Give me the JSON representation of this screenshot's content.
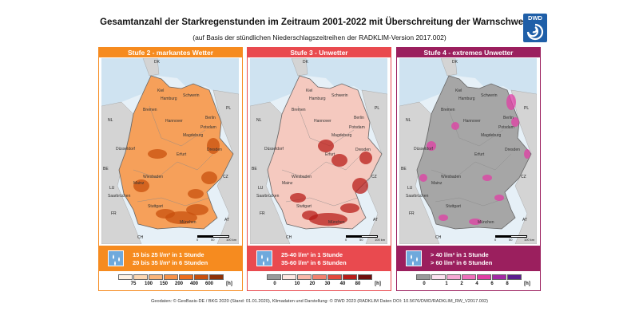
{
  "title": "Gesamtanzahl der Starkregenstunden im Zeitraum 2001-2022 mit Überschreitung der Warnschwellen",
  "subtitle": "(auf Basis der stündlichen Niederschlagszeitreihen der RADKLIM-Version 2017.002)",
  "logo_text": "DWD",
  "footer": "Geodaten: © GeoBasis-DE / BKG 2020 (Stand: 01.01.2020), Klimadaten und Darstellung: © DWD 2023 (RADKLIM Daten DOI: 10.5676/DWD/RADKLIM_RW_V2017.002)",
  "countries": {
    "dk": "DK",
    "nl": "NL",
    "be": "BE",
    "lu": "LU",
    "fr": "FR",
    "ch": "CH",
    "at": "AT",
    "cz": "CZ",
    "pl": "PL"
  },
  "cities": {
    "kiel": "Kiel",
    "hamburg": "Hamburg",
    "schwerin": "Schwerin",
    "bremen": "Bremen",
    "berlin": "Berlin",
    "hannover": "Hannover",
    "potsdam": "Potsdam",
    "magdeburg": "Magdeburg",
    "duesseldorf": "Düsseldorf",
    "erfurt": "Erfurt",
    "dresden": "Dresden",
    "wiesbaden": "Wiesbaden",
    "mainz": "Mainz",
    "saarbruecken": "Saarbrücken",
    "stuttgart": "Stuttgart",
    "muenchen": "München"
  },
  "scalebar": {
    "ticks": [
      "0",
      "50",
      "100 km"
    ]
  },
  "panels": [
    {
      "header": "Stufe 2 - markantes Wetter",
      "color": "#f68b1f",
      "info_color": "#f68b1f",
      "line1": "15 bis 25 l/m² in 1 Stunde",
      "line2": "20 bis 35 l/m² in 6 Stunden",
      "legend_colors": [
        "#fdf1e4",
        "#fbd6b1",
        "#f9b47a",
        "#f6924a",
        "#eb6d1f",
        "#c8500e",
        "#8f3208"
      ],
      "legend_labels": [
        "75",
        "100",
        "150",
        "200",
        "400",
        "600",
        "[h]"
      ]
    },
    {
      "header": "Stufe 3 - Unwetter",
      "color": "#e94a4f",
      "info_color": "#e94a4f",
      "line1": "25-40 l/m² in 1 Stunde",
      "line2": "35-60 l/m² in 6 Stunden",
      "legend_colors": [
        "#9a9a9a",
        "#fde6e1",
        "#f8b7a8",
        "#f2816e",
        "#e2483c",
        "#b81d19",
        "#6f0f0d"
      ],
      "legend_labels": [
        "0",
        "10",
        "20",
        "30",
        "40",
        "80",
        "[h]"
      ]
    },
    {
      "header": "Stufe 4 - extremes Unwetter",
      "color": "#9b1f5e",
      "info_color": "#9b1f5e",
      "line1": "> 40 l/m² in 1 Stunde",
      "line2": "> 60 l/m² in 6 Stunden",
      "legend_colors": [
        "#9a9a9a",
        "#fbe0ef",
        "#f5a8d3",
        "#ee70bb",
        "#e03ea4",
        "#a32aa5",
        "#5b1d8f"
      ],
      "legend_labels": [
        "0",
        "1",
        "2",
        "4",
        "6",
        "8",
        "[h]"
      ]
    }
  ]
}
